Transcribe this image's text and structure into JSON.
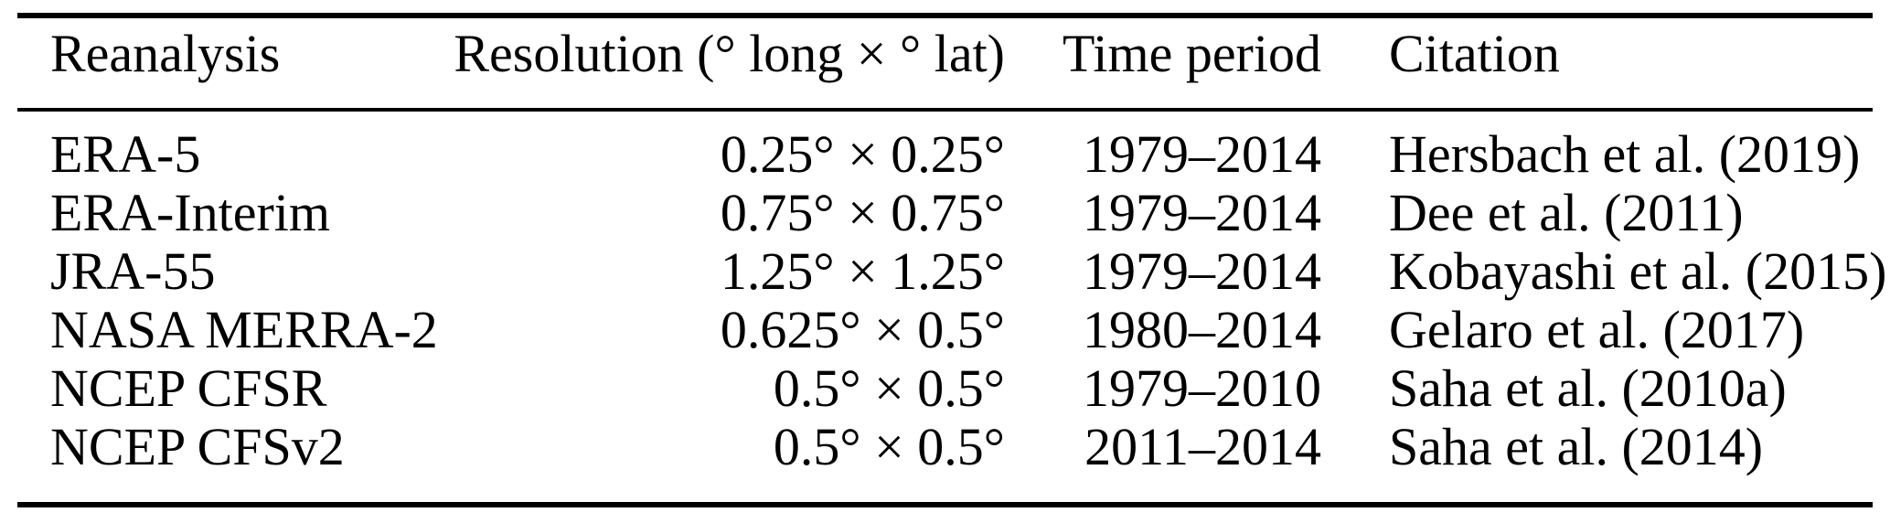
{
  "table": {
    "columns": [
      {
        "label": "Reanalysis"
      },
      {
        "label": "Resolution (° long × ° lat)"
      },
      {
        "label": "Time period"
      },
      {
        "label": "Citation"
      }
    ],
    "rows": [
      {
        "cells": [
          "ERA-5",
          "0.25° × 0.25°",
          "1979–2014",
          "Hersbach et al. (2019)"
        ]
      },
      {
        "cells": [
          "ERA-Interim",
          "0.75° × 0.75°",
          "1979–2014",
          "Dee et al. (2011)"
        ]
      },
      {
        "cells": [
          "JRA-55",
          "1.25° × 1.25°",
          "1979–2014",
          "Kobayashi et al. (2015)"
        ]
      },
      {
        "cells": [
          "NASA MERRA-2",
          "0.625° × 0.5°",
          "1980–2014",
          "Gelaro et al. (2017)"
        ]
      },
      {
        "cells": [
          "NCEP CFSR",
          "0.5° × 0.5°",
          "1979–2010",
          "Saha et al. (2010a)"
        ]
      },
      {
        "cells": [
          "NCEP CFSv2",
          "0.5° × 0.5°",
          "2011–2014",
          "Saha et al. (2014)"
        ]
      }
    ]
  },
  "colors": {
    "text": "#000000",
    "background": "#ffffff",
    "rule": "#000000"
  }
}
